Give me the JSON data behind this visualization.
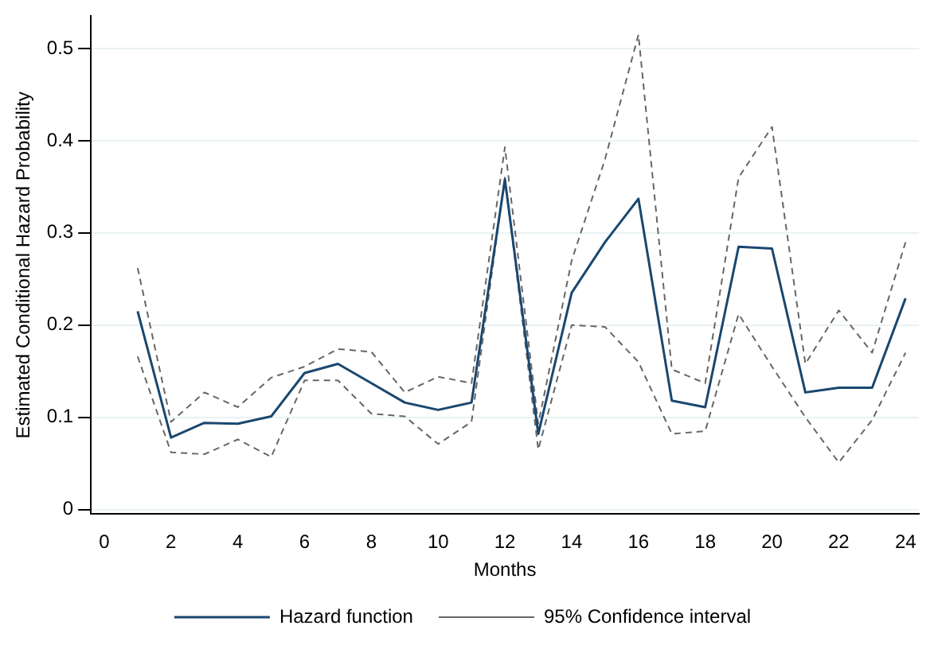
{
  "chart_data": {
    "type": "line",
    "xlabel": "Months",
    "ylabel": "Estimated Conditional Hazard Probability",
    "x": [
      1,
      2,
      3,
      4,
      5,
      6,
      7,
      8,
      9,
      10,
      11,
      12,
      13,
      14,
      15,
      16,
      17,
      18,
      19,
      20,
      21,
      22,
      23,
      24
    ],
    "series": [
      {
        "name": "Hazard function",
        "color": "#1a476f",
        "line_style": "solid",
        "values": [
          0.215,
          0.078,
          0.094,
          0.093,
          0.101,
          0.148,
          0.158,
          0.137,
          0.116,
          0.108,
          0.116,
          0.358,
          0.082,
          0.235,
          0.29,
          0.337,
          0.118,
          0.111,
          0.285,
          0.283,
          0.127,
          0.132,
          0.132,
          0.229
        ]
      },
      {
        "name": "95% Confidence interval",
        "color": "#666666",
        "line_style": "dashed",
        "values": [
          0.262,
          0.095,
          0.127,
          0.111,
          0.143,
          0.155,
          0.174,
          0.171,
          0.127,
          0.144,
          0.137,
          0.393,
          0.093,
          0.27,
          0.38,
          0.515,
          0.152,
          0.137,
          0.36,
          0.415,
          0.158,
          0.216,
          0.17,
          0.29
        ]
      },
      {
        "color": "#666666",
        "line_style": "dashed",
        "values": [
          0.166,
          0.062,
          0.06,
          0.076,
          0.057,
          0.14,
          0.14,
          0.104,
          0.101,
          0.071,
          0.095,
          0.36,
          0.065,
          0.2,
          0.198,
          0.16,
          0.082,
          0.085,
          0.212,
          0.155,
          0.1,
          0.051,
          0.097,
          0.17
        ]
      }
    ],
    "xlim": [
      -0.4,
      24.4
    ],
    "xticks": [
      0,
      2,
      4,
      6,
      8,
      10,
      12,
      14,
      16,
      18,
      20,
      22,
      24
    ],
    "ylim": [
      -0.005,
      0.535
    ],
    "yticks": [
      0,
      0.1,
      0.2,
      0.3,
      0.4,
      0.5
    ],
    "grid": "y",
    "legend": "bottom",
    "marker": "none"
  }
}
